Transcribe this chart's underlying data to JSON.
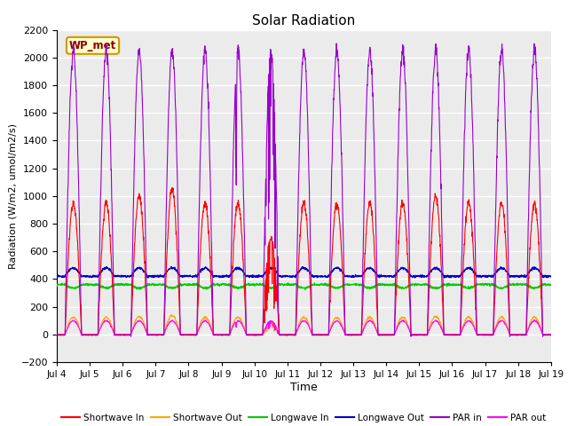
{
  "title": "Solar Radiation",
  "xlabel": "Time",
  "ylabel": "Radiation (W/m2, umol/m2/s)",
  "ylim": [
    -200,
    2200
  ],
  "yticks": [
    -200,
    0,
    200,
    400,
    600,
    800,
    1000,
    1200,
    1400,
    1600,
    1800,
    2000,
    2200
  ],
  "xtick_labels": [
    "Jul 4",
    "Jul 5",
    "Jul 6",
    "Jul 7",
    "Jul 8",
    "Jul 9",
    "Jul 10",
    "Jul 11",
    "Jul 12",
    "Jul 13",
    "Jul 14",
    "Jul 15",
    "Jul 16",
    "Jul 17",
    "Jul 18",
    "Jul 19"
  ],
  "n_days": 15,
  "points_per_day": 144,
  "shortwave_in_color": "#ff0000",
  "shortwave_out_color": "#ffa500",
  "longwave_in_color": "#00cc00",
  "longwave_out_color": "#0000cc",
  "par_in_color": "#9900cc",
  "par_out_color": "#ff00ff",
  "background_color": "#ebebeb",
  "annotation_text": "WP_met",
  "annotation_bg": "#ffffcc",
  "annotation_border": "#cc9900",
  "legend_entries": [
    "Shortwave In",
    "Shortwave Out",
    "Longwave In",
    "Longwave Out",
    "PAR in",
    "PAR out"
  ]
}
